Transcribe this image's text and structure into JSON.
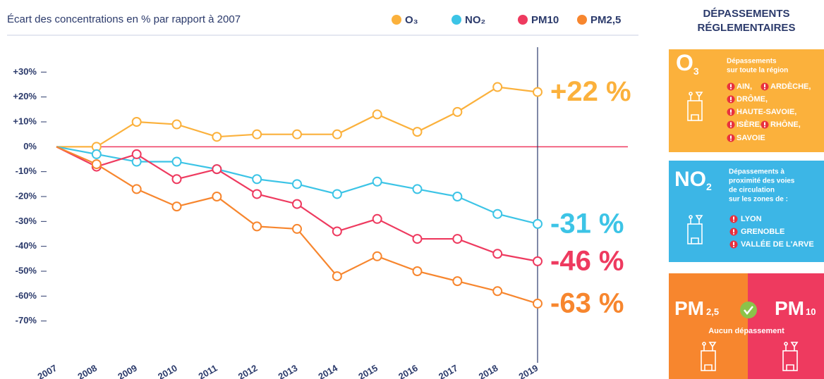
{
  "chart_data": {
    "type": "line",
    "title": "Écart des concentrations en % par rapport à 2007",
    "categories": [
      "2007",
      "2008",
      "2009",
      "2010",
      "2011",
      "2012",
      "2013",
      "2014",
      "2015",
      "2016",
      "2017",
      "2018",
      "2019"
    ],
    "series": [
      {
        "name": "O₃",
        "color": "#fbb13c",
        "values": [
          0,
          0,
          10,
          9,
          4,
          5,
          5,
          5,
          13,
          6,
          14,
          24,
          22
        ],
        "value_labels": [
          null,
          null,
          null,
          null,
          null,
          null,
          null,
          null,
          null,
          null,
          null,
          null,
          "+22 %"
        ]
      },
      {
        "name": "NO₂",
        "color": "#3cc4e6",
        "values": [
          0,
          -3,
          -6,
          -6,
          -9,
          -13,
          -15,
          -19,
          -14,
          -17,
          -20,
          -27,
          -31
        ],
        "value_labels": [
          null,
          null,
          null,
          null,
          null,
          null,
          null,
          null,
          null,
          null,
          null,
          null,
          "-31 %"
        ]
      },
      {
        "name": "PM10",
        "color": "#ee3a5f",
        "values": [
          0,
          -8,
          -3,
          -13,
          -9,
          -19,
          -23,
          -34,
          -29,
          -37,
          -37,
          -43,
          -46
        ],
        "value_labels": [
          null,
          null,
          null,
          null,
          null,
          null,
          null,
          null,
          null,
          null,
          null,
          null,
          "-46 %"
        ]
      },
      {
        "name": "PM2,5",
        "color": "#f7862e",
        "values": [
          0,
          -7,
          -17,
          -24,
          -20,
          -32,
          -33,
          -52,
          -44,
          -50,
          -54,
          -58,
          -63
        ],
        "value_labels": [
          null,
          null,
          null,
          null,
          null,
          null,
          null,
          null,
          null,
          null,
          null,
          null,
          "-63 %"
        ]
      }
    ],
    "ylim": [
      -80,
      40
    ],
    "yticks": [
      {
        "value": 30,
        "label": "+30%"
      },
      {
        "value": 20,
        "label": "+20%"
      },
      {
        "value": 10,
        "label": "+10%"
      },
      {
        "value": 0,
        "label": "0%"
      },
      {
        "value": -10,
        "label": "-10%"
      },
      {
        "value": -20,
        "label": "-20%"
      },
      {
        "value": -30,
        "label": "-30%"
      },
      {
        "value": -40,
        "label": "-40%"
      },
      {
        "value": -50,
        "label": "-50%"
      },
      {
        "value": -60,
        "label": "-60%"
      },
      {
        "value": -70,
        "label": "-70%"
      }
    ],
    "zero_line_color": "#ee3a5f",
    "legend": "top-right"
  },
  "panel": {
    "title": [
      "DÉPASSEMENTS",
      "RÉGLEMENTAIRES"
    ],
    "o3": {
      "main": "O",
      "sub": "3",
      "text": [
        "Dépassements",
        "sur toute la région"
      ],
      "items": [
        "AIN,",
        "ARDÈCHE,",
        "DRÔME,",
        "HAUTE-SAVOIE,",
        "ISÈRE,",
        "RHÔNE,",
        "SAVOIE"
      ]
    },
    "no2": {
      "main": "NO",
      "sub": "2",
      "text": [
        "Dépassements à",
        "proximité des voies",
        "de circulation",
        "sur les zones de :"
      ],
      "items": [
        "LYON",
        "GRENOBLE",
        "VALLÉE DE L'ARVE"
      ]
    },
    "pm": {
      "left": {
        "main": "PM",
        "sub": "2,5"
      },
      "right": {
        "main": "PM",
        "sub": "10"
      },
      "text": "Aucun dépassement"
    }
  }
}
